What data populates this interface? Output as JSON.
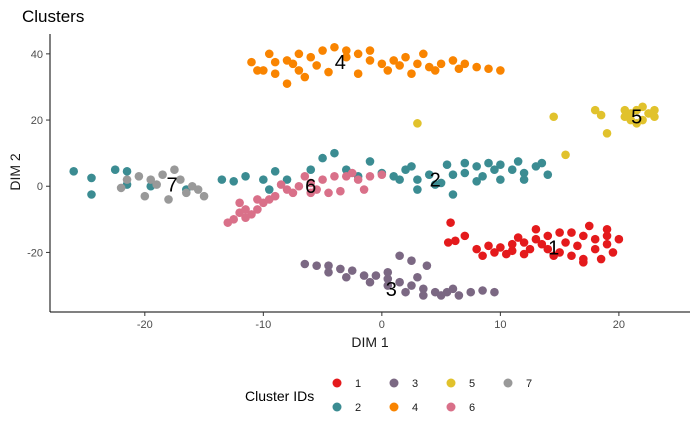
{
  "chart_data": {
    "type": "scatter",
    "title": "Clusters",
    "xlabel": "DIM 1",
    "ylabel": "DIM 2",
    "xlim": [
      -28,
      26
    ],
    "ylim": [
      -38,
      46
    ],
    "xticks": [
      -20,
      -10,
      0,
      10,
      20
    ],
    "xtick_labels": [
      "-20",
      "-10",
      "0",
      "10",
      "20"
    ],
    "yticks": [
      -20,
      0,
      20,
      40
    ],
    "ytick_labels": [
      "-20",
      "0",
      "20",
      "40"
    ],
    "grid": false,
    "legend_position": "bottom",
    "legend_title": "Cluster IDs",
    "series": [
      {
        "name": "1",
        "color": "#e41a1c",
        "label_pos": [
          14.5,
          -18.5
        ],
        "points": [
          [
            5.8,
            -11
          ],
          [
            6.2,
            -16.5
          ],
          [
            5.6,
            -17
          ],
          [
            7,
            -15
          ],
          [
            8,
            -19
          ],
          [
            9,
            -18
          ],
          [
            10,
            -18.5
          ],
          [
            11,
            -17.5
          ],
          [
            12,
            -17
          ],
          [
            13,
            -16
          ],
          [
            14,
            -15
          ],
          [
            15,
            -14
          ],
          [
            16,
            -14
          ],
          [
            17,
            -15
          ],
          [
            18,
            -16
          ],
          [
            19,
            -15
          ],
          [
            20,
            -16
          ],
          [
            19.5,
            -20
          ],
          [
            18.5,
            -22
          ],
          [
            17,
            -22
          ],
          [
            16,
            -21
          ],
          [
            15,
            -20
          ],
          [
            14,
            -19
          ],
          [
            12.5,
            -19
          ],
          [
            11,
            -19.5
          ],
          [
            9.5,
            -20
          ],
          [
            8.5,
            -21
          ],
          [
            13,
            -13
          ],
          [
            17.5,
            -12
          ],
          [
            19,
            -13
          ],
          [
            16.5,
            -18
          ],
          [
            18,
            -19
          ],
          [
            15.5,
            -17
          ],
          [
            11.5,
            -15.5
          ],
          [
            10.5,
            -20.5
          ],
          [
            14.5,
            -21
          ],
          [
            17,
            -23
          ],
          [
            19,
            -17.5
          ],
          [
            13.5,
            -17.5
          ],
          [
            12,
            -20.5
          ]
        ]
      },
      {
        "name": "2",
        "color": "#3b8c92",
        "label_pos": [
          4.5,
          2
        ],
        "points": [
          [
            -26,
            4.5
          ],
          [
            -24.5,
            2.5
          ],
          [
            -24.5,
            -2.5
          ],
          [
            -22.5,
            5
          ],
          [
            -21.5,
            4.5
          ],
          [
            -21.5,
            0.5
          ],
          [
            -19.5,
            0
          ],
          [
            -16.5,
            -1
          ],
          [
            -13.5,
            2
          ],
          [
            -12.5,
            1.5
          ],
          [
            -11.5,
            3
          ],
          [
            -10,
            2
          ],
          [
            -9,
            4.5
          ],
          [
            -9.5,
            -1
          ],
          [
            -8,
            2
          ],
          [
            -6,
            5
          ],
          [
            -5,
            8.5
          ],
          [
            -4,
            10
          ],
          [
            -3,
            5
          ],
          [
            -2,
            3
          ],
          [
            -1,
            7.5
          ],
          [
            0,
            4
          ],
          [
            1,
            3
          ],
          [
            2,
            5
          ],
          [
            3,
            2
          ],
          [
            3,
            -1
          ],
          [
            4,
            3.5
          ],
          [
            4.5,
            0.5
          ],
          [
            5,
            1
          ],
          [
            6,
            3.5
          ],
          [
            7,
            4
          ],
          [
            8,
            6
          ],
          [
            9,
            7
          ],
          [
            10,
            6.5
          ],
          [
            11,
            5
          ],
          [
            12,
            4
          ],
          [
            13,
            6
          ],
          [
            14,
            3.5
          ],
          [
            13.5,
            7
          ],
          [
            12,
            2
          ],
          [
            10,
            2
          ],
          [
            8.5,
            3
          ],
          [
            7,
            7
          ],
          [
            5.5,
            6.5
          ],
          [
            6,
            -2.5
          ],
          [
            2.5,
            6
          ],
          [
            1.5,
            2
          ],
          [
            9.5,
            5
          ],
          [
            11.5,
            7.5
          ],
          [
            8,
            1.5
          ]
        ]
      },
      {
        "name": "3",
        "color": "#7b6883",
        "label_pos": [
          0.8,
          -31
        ],
        "points": [
          [
            -6.5,
            -23.5
          ],
          [
            -5.5,
            -24
          ],
          [
            -4.5,
            -24
          ],
          [
            -3.5,
            -25
          ],
          [
            -2.5,
            -25.5
          ],
          [
            -1.5,
            -27
          ],
          [
            -0.5,
            -27
          ],
          [
            0.5,
            -28
          ],
          [
            1.5,
            -29
          ],
          [
            2.5,
            -30
          ],
          [
            3.5,
            -31
          ],
          [
            4.5,
            -32
          ],
          [
            5.5,
            -32
          ],
          [
            6.5,
            -33
          ],
          [
            7.5,
            -32
          ],
          [
            8.5,
            -31.5
          ],
          [
            9.5,
            -32
          ],
          [
            -4.5,
            -26
          ],
          [
            -3,
            -27.5
          ],
          [
            -1,
            -29
          ],
          [
            0.5,
            -30
          ],
          [
            2,
            -32
          ],
          [
            3.5,
            -33
          ],
          [
            5,
            -33
          ],
          [
            1.5,
            -21
          ],
          [
            2.5,
            -22.5
          ],
          [
            3.8,
            -24
          ],
          [
            0.5,
            -26
          ],
          [
            6,
            -31
          ],
          [
            3,
            -27.5
          ]
        ]
      },
      {
        "name": "4",
        "color": "#f98400",
        "label_pos": [
          -3.5,
          37.5
        ],
        "points": [
          [
            -11,
            37.5
          ],
          [
            -10.5,
            35
          ],
          [
            -10,
            35
          ],
          [
            -9,
            37.5
          ],
          [
            -8,
            38
          ],
          [
            -7,
            40
          ],
          [
            -6,
            39
          ],
          [
            -5,
            41
          ],
          [
            -4,
            42
          ],
          [
            -3,
            41
          ],
          [
            -2,
            40
          ],
          [
            -1,
            38
          ],
          [
            0,
            37
          ],
          [
            1,
            38
          ],
          [
            2,
            39
          ],
          [
            3,
            37
          ],
          [
            4,
            36
          ],
          [
            5,
            37
          ],
          [
            6,
            38
          ],
          [
            7,
            37
          ],
          [
            8,
            36
          ],
          [
            9,
            35.5
          ],
          [
            10,
            35
          ],
          [
            4.5,
            35
          ],
          [
            2.5,
            34
          ],
          [
            0.5,
            35
          ],
          [
            -2,
            34
          ],
          [
            -4.5,
            34.5
          ],
          [
            -7,
            35
          ],
          [
            -9,
            34
          ],
          [
            -8,
            31
          ],
          [
            -6.5,
            33
          ],
          [
            -9.5,
            40
          ],
          [
            -3,
            39
          ],
          [
            6.5,
            35.5
          ],
          [
            3.5,
            40
          ],
          [
            -5.5,
            36.5
          ],
          [
            -7.5,
            37
          ],
          [
            1.5,
            36.5
          ],
          [
            -1,
            41
          ]
        ]
      },
      {
        "name": "5",
        "color": "#e1c22c",
        "label_pos": [
          21.5,
          21
        ],
        "points": [
          [
            3,
            19
          ],
          [
            14.5,
            21
          ],
          [
            15.5,
            9.5
          ],
          [
            18,
            23
          ],
          [
            18.5,
            21.5
          ],
          [
            19,
            16
          ],
          [
            20.5,
            23
          ],
          [
            21,
            22
          ],
          [
            21.5,
            23
          ],
          [
            22,
            20
          ],
          [
            22.5,
            22
          ],
          [
            23,
            21
          ],
          [
            22,
            24
          ],
          [
            21,
            20
          ],
          [
            23,
            23
          ],
          [
            21.5,
            19
          ],
          [
            20.5,
            21
          ]
        ]
      },
      {
        "name": "6",
        "color": "#d97089",
        "label_pos": [
          -6,
          0
        ],
        "points": [
          [
            -13,
            -11
          ],
          [
            -12.5,
            -10
          ],
          [
            -12,
            -8
          ],
          [
            -11.5,
            -7
          ],
          [
            -11,
            -8.5
          ],
          [
            -10.5,
            -7
          ],
          [
            -10,
            -5
          ],
          [
            -9.5,
            -4
          ],
          [
            -9,
            -3
          ],
          [
            -8,
            -1
          ],
          [
            -7,
            0
          ],
          [
            -6,
            1
          ],
          [
            -5,
            2
          ],
          [
            -4,
            3
          ],
          [
            -3,
            3
          ],
          [
            -2,
            2
          ],
          [
            -1,
            3
          ],
          [
            0,
            3.5
          ],
          [
            -1.5,
            -1
          ],
          [
            -3.5,
            -1.5
          ],
          [
            -5.5,
            -1
          ],
          [
            -7.5,
            -2
          ],
          [
            -8.5,
            0.5
          ],
          [
            -10.5,
            -4
          ],
          [
            -11.5,
            -9.5
          ],
          [
            -6.5,
            3
          ],
          [
            -4.5,
            -2
          ],
          [
            -2.5,
            4
          ],
          [
            -6,
            -2
          ],
          [
            -12,
            -5
          ]
        ]
      },
      {
        "name": "7",
        "color": "#999999",
        "label_pos": [
          -17.7,
          0.5
        ],
        "points": [
          [
            -22,
            -0.5
          ],
          [
            -21.5,
            2
          ],
          [
            -20.5,
            3
          ],
          [
            -19.5,
            2
          ],
          [
            -19,
            0.5
          ],
          [
            -18.5,
            3.5
          ],
          [
            -17.5,
            5
          ],
          [
            -17,
            2
          ],
          [
            -16,
            0
          ],
          [
            -15.5,
            -1
          ],
          [
            -15,
            -3
          ],
          [
            -18,
            -4
          ],
          [
            -20,
            -3
          ],
          [
            -16.5,
            -2
          ]
        ]
      }
    ],
    "legend_rows": [
      [
        "1",
        "3",
        "5",
        "7"
      ],
      [
        "2",
        "4",
        "6"
      ]
    ]
  }
}
